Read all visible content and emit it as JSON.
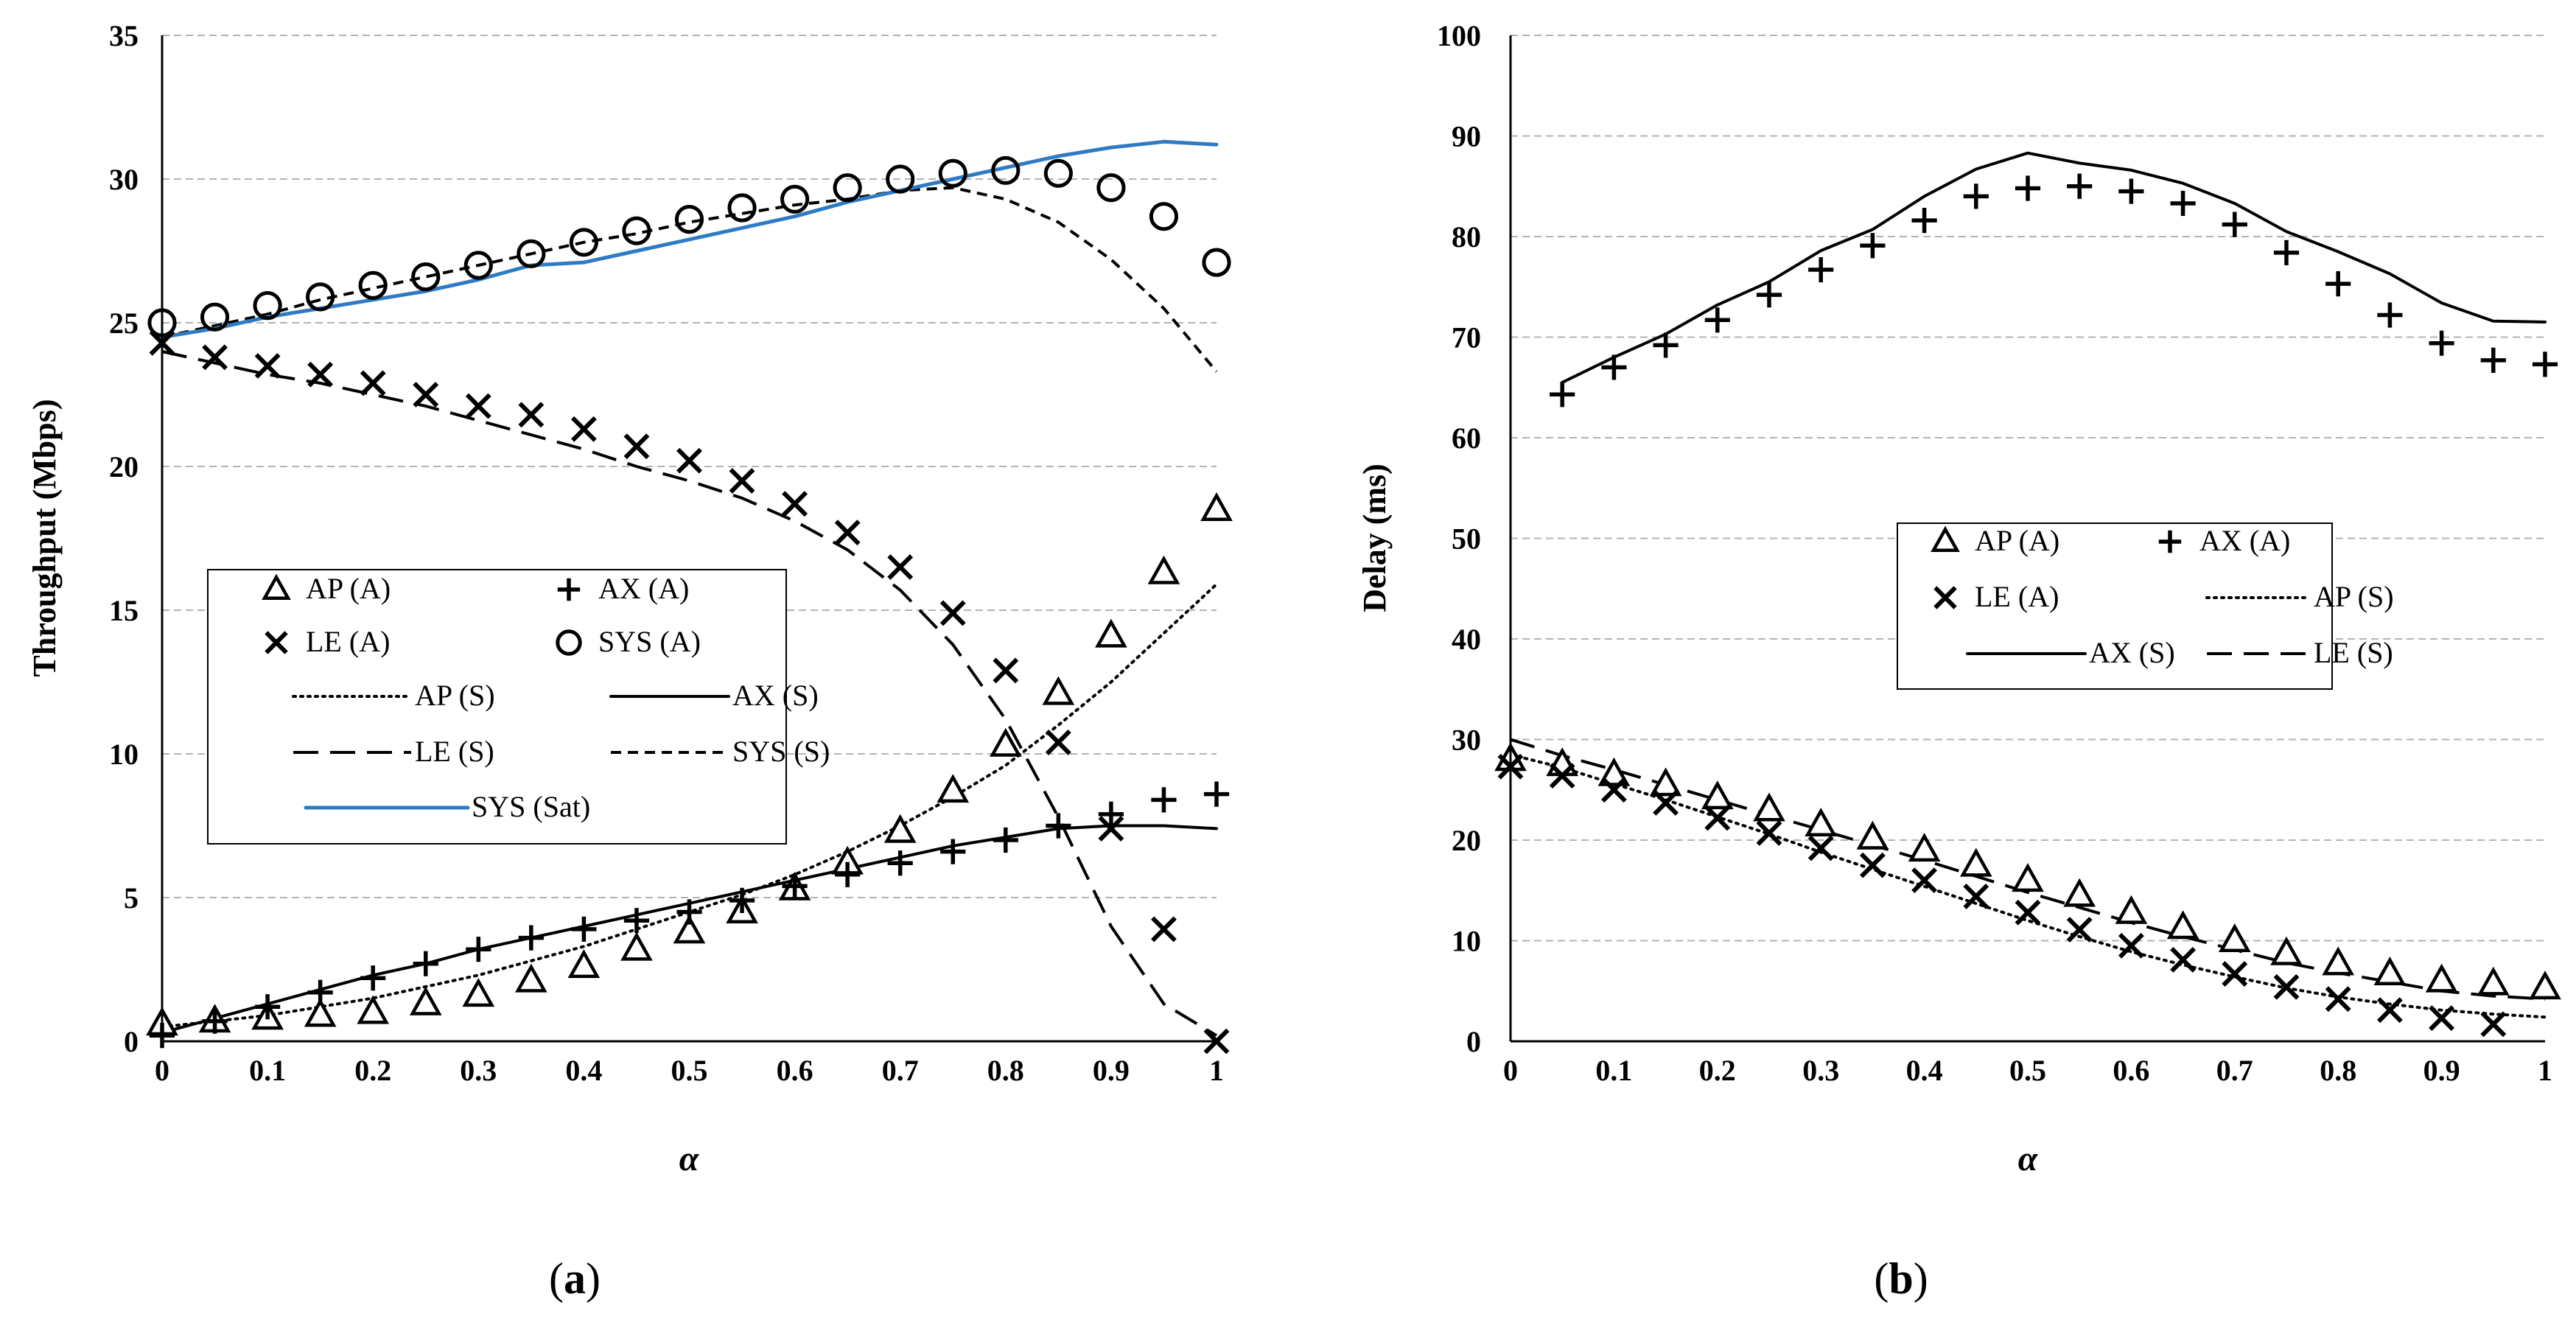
{
  "chart_data": [
    {
      "type": "line",
      "panel": "a",
      "caption_letter": "a",
      "xlabel": "α",
      "ylabel": "Throughput (Mbps)",
      "xlim": [
        0,
        1
      ],
      "ylim": [
        0,
        35
      ],
      "x_ticks": [
        "0",
        "0.1",
        "0.2",
        "0.3",
        "0.4",
        "0.5",
        "0.6",
        "0.7",
        "0.8",
        "0.9",
        "1"
      ],
      "y_ticks": [
        "0",
        "5",
        "10",
        "15",
        "20",
        "25",
        "30",
        "35"
      ],
      "grid": "horizontal dashed",
      "legend_position": "center-left",
      "x": [
        0,
        0.05,
        0.1,
        0.15,
        0.2,
        0.25,
        0.3,
        0.35,
        0.4,
        0.45,
        0.5,
        0.55,
        0.6,
        0.65,
        0.7,
        0.75,
        0.8,
        0.85,
        0.9,
        0.95,
        1
      ],
      "series": [
        {
          "name": "AP (A)",
          "style": "triangle",
          "values": [
            0.6,
            0.7,
            0.8,
            0.9,
            1.0,
            1.3,
            1.6,
            2.1,
            2.6,
            3.2,
            3.8,
            4.5,
            5.3,
            6.2,
            7.3,
            8.7,
            10.3,
            12.1,
            14.1,
            16.3,
            18.5
          ]
        },
        {
          "name": "AX (A)",
          "style": "plus",
          "values": [
            0.2,
            0.7,
            1.2,
            1.7,
            2.2,
            2.7,
            3.2,
            3.6,
            3.9,
            4.2,
            4.5,
            4.9,
            5.4,
            5.8,
            6.2,
            6.6,
            7.0,
            7.5,
            7.9,
            8.4,
            8.6
          ]
        },
        {
          "name": "LE (A)",
          "style": "cross",
          "values": [
            24.3,
            23.8,
            23.5,
            23.2,
            22.9,
            22.5,
            22.1,
            21.8,
            21.3,
            20.7,
            20.2,
            19.5,
            18.7,
            17.7,
            16.5,
            14.9,
            12.9,
            10.4,
            7.4,
            3.9,
            0.0
          ]
        },
        {
          "name": "SYS (A)",
          "style": "circle",
          "values": [
            25.0,
            25.2,
            25.6,
            25.9,
            26.3,
            26.6,
            27.0,
            27.4,
            27.8,
            28.2,
            28.6,
            29.0,
            29.3,
            29.7,
            30.0,
            30.2,
            30.3,
            30.2,
            29.7,
            28.7,
            27.1
          ]
        },
        {
          "name": "AP (S)",
          "style": "dotted",
          "values": [
            0.5,
            0.7,
            0.9,
            1.2,
            1.5,
            1.9,
            2.3,
            2.8,
            3.3,
            3.9,
            4.5,
            5.1,
            5.8,
            6.6,
            7.5,
            8.5,
            9.6,
            11.0,
            12.5,
            14.2,
            15.9
          ]
        },
        {
          "name": "AX (S)",
          "style": "solid",
          "values": [
            0.3,
            0.8,
            1.3,
            1.8,
            2.3,
            2.7,
            3.2,
            3.6,
            4.0,
            4.4,
            4.8,
            5.2,
            5.6,
            6.0,
            6.4,
            6.8,
            7.1,
            7.4,
            7.5,
            7.5,
            7.4
          ]
        },
        {
          "name": "LE (S)",
          "style": "long-dash",
          "values": [
            24.0,
            23.6,
            23.2,
            22.9,
            22.5,
            22.1,
            21.6,
            21.1,
            20.6,
            20.0,
            19.5,
            18.9,
            18.1,
            17.1,
            15.7,
            13.8,
            11.2,
            7.8,
            4.0,
            1.3,
            0.2
          ]
        },
        {
          "name": "SYS (S)",
          "style": "short-dash",
          "values": [
            24.5,
            24.9,
            25.3,
            25.8,
            26.2,
            26.6,
            27.0,
            27.4,
            27.8,
            28.1,
            28.5,
            28.8,
            29.1,
            29.3,
            29.6,
            29.7,
            29.3,
            28.5,
            27.2,
            25.5,
            23.3
          ]
        },
        {
          "name": "SYS (Sat)",
          "style": "solid-blue",
          "values": [
            24.5,
            24.8,
            25.2,
            25.5,
            25.8,
            26.1,
            26.5,
            27.0,
            27.1,
            27.5,
            27.9,
            28.3,
            28.7,
            29.2,
            29.6,
            30.0,
            30.4,
            30.8,
            31.1,
            31.3,
            31.2
          ]
        }
      ]
    },
    {
      "type": "line",
      "panel": "b",
      "caption_letter": "b",
      "xlabel": "α",
      "ylabel": "Delay (ms)",
      "xlim": [
        0,
        1
      ],
      "ylim": [
        0,
        100
      ],
      "x_ticks": [
        "0",
        "0.1",
        "0.2",
        "0.3",
        "0.4",
        "0.5",
        "0.6",
        "0.7",
        "0.8",
        "0.9",
        "1"
      ],
      "y_ticks": [
        "0",
        "10",
        "20",
        "30",
        "40",
        "50",
        "60",
        "70",
        "80",
        "90",
        "100"
      ],
      "grid": "horizontal dashed",
      "legend_position": "center-right",
      "x": [
        0,
        0.05,
        0.1,
        0.15,
        0.2,
        0.25,
        0.3,
        0.35,
        0.4,
        0.45,
        0.5,
        0.55,
        0.6,
        0.65,
        0.7,
        0.75,
        0.8,
        0.85,
        0.9,
        0.95,
        1
      ],
      "series": [
        {
          "name": "AP (A)",
          "style": "triangle",
          "values": [
            28.0,
            27.5,
            26.5,
            25.5,
            24.2,
            23.0,
            21.5,
            20.2,
            19.0,
            17.5,
            16.0,
            14.5,
            12.8,
            11.3,
            10.0,
            8.7,
            7.7,
            6.7,
            6.0,
            5.7,
            5.3
          ]
        },
        {
          "name": "AX (A)",
          "style": "plus",
          "values": [
            null,
            64.3,
            67.0,
            69.2,
            71.7,
            74.2,
            76.7,
            79.1,
            81.6,
            84.0,
            84.8,
            85.0,
            84.5,
            83.3,
            81.2,
            78.4,
            75.3,
            72.2,
            69.4,
            67.7,
            67.3
          ]
        },
        {
          "name": "LE (A)",
          "style": "cross",
          "values": [
            27.3,
            26.4,
            25.0,
            23.7,
            22.2,
            20.7,
            19.2,
            17.5,
            16.0,
            14.4,
            12.8,
            11.1,
            9.5,
            8.1,
            6.7,
            5.4,
            4.2,
            3.1,
            2.3,
            1.7,
            null
          ]
        },
        {
          "name": "AP (S)",
          "style": "dotted",
          "values": [
            28.5,
            27.2,
            25.6,
            24.0,
            22.3,
            20.6,
            18.8,
            17.1,
            15.4,
            13.7,
            12.0,
            10.4,
            8.9,
            7.6,
            6.4,
            5.3,
            4.4,
            3.7,
            3.1,
            2.7,
            2.4
          ]
        },
        {
          "name": "AX (S)",
          "style": "solid",
          "values": [
            null,
            65.5,
            68.0,
            70.3,
            73.2,
            75.5,
            78.6,
            80.7,
            84.0,
            86.7,
            88.3,
            87.3,
            86.6,
            85.3,
            83.3,
            80.5,
            78.5,
            76.3,
            73.4,
            71.6,
            71.5
          ]
        },
        {
          "name": "LE (S)",
          "style": "long-dash",
          "values": [
            30.0,
            28.4,
            27.0,
            25.5,
            24.0,
            22.5,
            21.0,
            19.5,
            18.0,
            16.4,
            14.8,
            13.3,
            11.8,
            10.4,
            9.1,
            7.8,
            6.8,
            5.9,
            5.0,
            4.5,
            4.2
          ]
        }
      ]
    }
  ]
}
